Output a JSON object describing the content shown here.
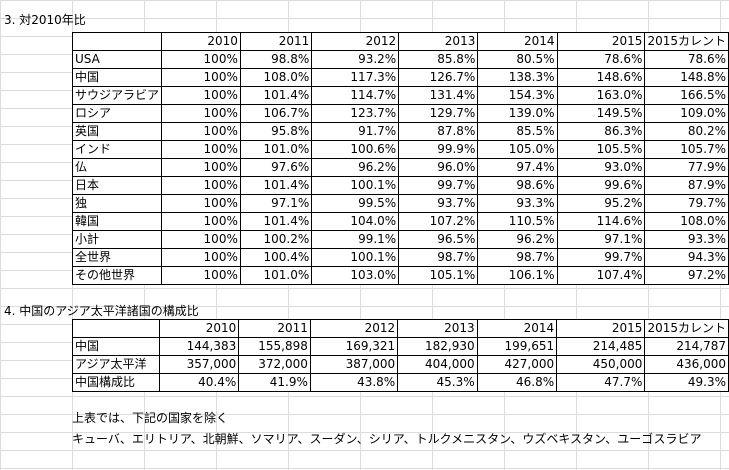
{
  "section1": {
    "title": "3. 対2010年比",
    "columns": [
      "",
      "2010",
      "2011",
      "2012",
      "2013",
      "2014",
      "2015",
      "2015カレント"
    ],
    "rows": [
      [
        "USA",
        "100%",
        "98.8%",
        "93.2%",
        "85.8%",
        "80.5%",
        "78.6%",
        "78.6%"
      ],
      [
        "中国",
        "100%",
        "108.0%",
        "117.3%",
        "126.7%",
        "138.3%",
        "148.6%",
        "148.8%"
      ],
      [
        "サウジアラビア",
        "100%",
        "101.4%",
        "114.7%",
        "131.4%",
        "154.3%",
        "163.0%",
        "166.5%"
      ],
      [
        "ロシア",
        "100%",
        "106.7%",
        "123.7%",
        "129.7%",
        "139.0%",
        "149.5%",
        "109.0%"
      ],
      [
        "英国",
        "100%",
        "95.8%",
        "91.7%",
        "87.8%",
        "85.5%",
        "86.3%",
        "80.2%"
      ],
      [
        "インド",
        "100%",
        "101.0%",
        "100.6%",
        "99.9%",
        "105.0%",
        "105.5%",
        "105.7%"
      ],
      [
        "仏",
        "100%",
        "97.6%",
        "96.2%",
        "96.0%",
        "97.4%",
        "93.0%",
        "77.9%"
      ],
      [
        "日本",
        "100%",
        "101.4%",
        "100.1%",
        "99.7%",
        "98.6%",
        "99.6%",
        "87.9%"
      ],
      [
        "独",
        "100%",
        "97.1%",
        "99.5%",
        "93.7%",
        "93.3%",
        "95.2%",
        "79.7%"
      ],
      [
        "韓国",
        "100%",
        "101.4%",
        "104.0%",
        "107.2%",
        "110.5%",
        "114.6%",
        "108.0%"
      ],
      [
        "小計",
        "100%",
        "100.2%",
        "99.1%",
        "96.5%",
        "96.2%",
        "97.1%",
        "93.3%"
      ],
      [
        "全世界",
        "100%",
        "100.4%",
        "100.1%",
        "98.7%",
        "98.7%",
        "99.7%",
        "94.3%"
      ],
      [
        "その他世界",
        "100%",
        "101.0%",
        "103.0%",
        "105.1%",
        "106.1%",
        "107.4%",
        "97.2%"
      ]
    ]
  },
  "section2": {
    "title": "4. 中国のアジア太平洋諸国の構成比",
    "columns": [
      "",
      "2010",
      "2011",
      "2012",
      "2013",
      "2014",
      "2015",
      "2015カレント"
    ],
    "rows": [
      [
        "中国",
        "144,383",
        "155,898",
        "169,321",
        "182,930",
        "199,651",
        "214,485",
        "214,787"
      ],
      [
        "アジア太平洋",
        "357,000",
        "372,000",
        "387,000",
        "404,000",
        "427,000",
        "450,000",
        "436,000"
      ],
      [
        "中国構成比",
        "40.4%",
        "41.9%",
        "43.8%",
        "45.3%",
        "46.8%",
        "47.7%",
        "49.3%"
      ]
    ]
  },
  "notes": {
    "line1": "上表では、下記の国家を除く",
    "line2": "キューバ、エリトリア、北朝鮮、ソマリア、スーダン、シリア、トルクメニスタン、ウズベキスタン、ユーゴスラビア"
  }
}
